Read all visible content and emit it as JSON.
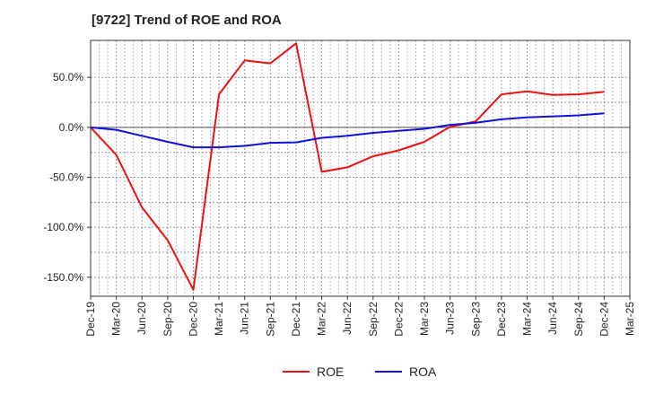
{
  "chart_data": {
    "type": "line",
    "title": "[9722]  Trend of ROE and ROA",
    "x": [
      "Dec-19",
      "Mar-20",
      "Jun-20",
      "Sep-20",
      "Dec-20",
      "Mar-21",
      "Jun-21",
      "Sep-21",
      "Dec-21",
      "Mar-22",
      "Jun-22",
      "Sep-22",
      "Dec-22",
      "Mar-23",
      "Jun-23",
      "Sep-23",
      "Dec-23",
      "Mar-24",
      "Jun-24",
      "Sep-24",
      "Dec-24"
    ],
    "x_ticks": [
      "Dec-19",
      "Mar-20",
      "Jun-20",
      "Sep-20",
      "Dec-20",
      "Mar-21",
      "Jun-21",
      "Sep-21",
      "Dec-21",
      "Mar-22",
      "Jun-22",
      "Sep-22",
      "Dec-22",
      "Mar-23",
      "Jun-23",
      "Sep-23",
      "Dec-23",
      "Mar-24",
      "Jun-24",
      "Sep-24",
      "Dec-24",
      "Mar-25"
    ],
    "y_ticks": [
      "50.0%",
      "0.0%",
      "-50.0%",
      "-100.0%",
      "-150.0%"
    ],
    "y_tick_values": [
      50,
      0,
      -50,
      -100,
      -150
    ],
    "ylim": [
      -169,
      87
    ],
    "grid": true,
    "legend_position": "bottom-center",
    "series": [
      {
        "name": "ROE",
        "color": "#ee1111",
        "values": [
          0.0,
          -27.5,
          -80.0,
          -113.0,
          -162.5,
          33.0,
          67.0,
          64.0,
          84.0,
          -44.5,
          -40.0,
          -29.0,
          -23.0,
          -14.5,
          0.5,
          6.0,
          33.0,
          36.0,
          32.5,
          33.0,
          35.5
        ]
      },
      {
        "name": "ROA",
        "color": "#1111dd",
        "values": [
          0.0,
          -2.5,
          -8.5,
          -14.5,
          -20.0,
          -20.0,
          -18.5,
          -15.5,
          -15.0,
          -10.5,
          -8.5,
          -5.5,
          -3.5,
          -1.5,
          2.5,
          4.5,
          8.0,
          10.0,
          11.0,
          12.0,
          14.0
        ]
      }
    ]
  }
}
